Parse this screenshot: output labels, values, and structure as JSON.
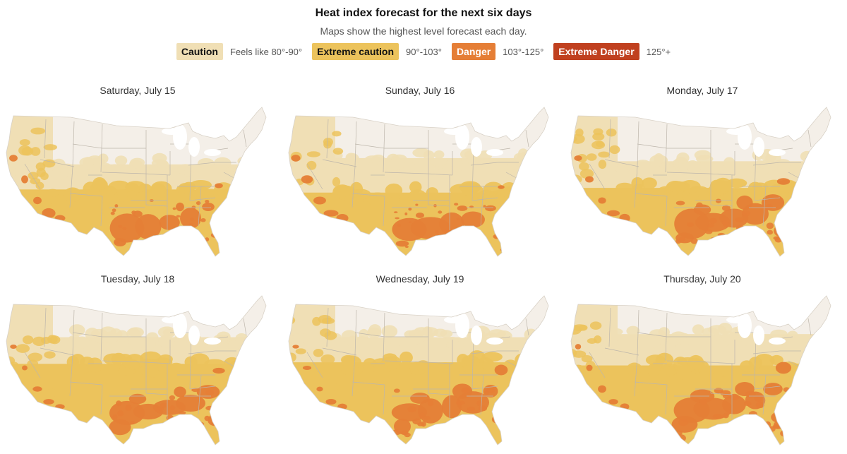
{
  "header": {
    "title": "Heat index forecast for the next six days",
    "subtitle": "Maps show the highest level forecast each day."
  },
  "legend": [
    {
      "label": "Caution",
      "range": "Feels like 80°-90°",
      "color": "#f0dfb5",
      "text_color": "#121212"
    },
    {
      "label": "Extreme caution",
      "range": "90°-103°",
      "color": "#ecc35c",
      "text_color": "#121212"
    },
    {
      "label": "Danger",
      "range": "103°-125°",
      "color": "#e57e36",
      "text_color": "#ffffff"
    },
    {
      "label": "Extreme Danger",
      "range": "125°+",
      "color": "#c0401f",
      "text_color": "#ffffff"
    }
  ],
  "colors": {
    "land": "#f4efe8",
    "caution": "#f0dfb5",
    "extreme_caution": "#ecc35c",
    "danger": "#e57e36",
    "border": "#bdb6ab"
  },
  "maps": [
    {
      "day": "Saturday, July 15",
      "caution_line": 0.4,
      "extreme_line": 0.56,
      "danger_level": 0.55,
      "west_heat": 0.8
    },
    {
      "day": "Sunday, July 16",
      "caution_line": 0.36,
      "extreme_line": 0.58,
      "danger_level": 0.45,
      "west_heat": 0.9
    },
    {
      "day": "Monday, July 17",
      "caution_line": 0.38,
      "extreme_line": 0.55,
      "danger_level": 0.85,
      "west_heat": 0.8
    },
    {
      "day": "Tuesday, July 18",
      "caution_line": 0.3,
      "extreme_line": 0.47,
      "danger_level": 0.8,
      "west_heat": 0.7
    },
    {
      "day": "Wednesday, July 19",
      "caution_line": 0.3,
      "extreme_line": 0.46,
      "danger_level": 0.85,
      "west_heat": 0.7
    },
    {
      "day": "Thursday, July 20",
      "caution_line": 0.28,
      "extreme_line": 0.48,
      "danger_level": 1.0,
      "west_heat": 0.65
    }
  ]
}
